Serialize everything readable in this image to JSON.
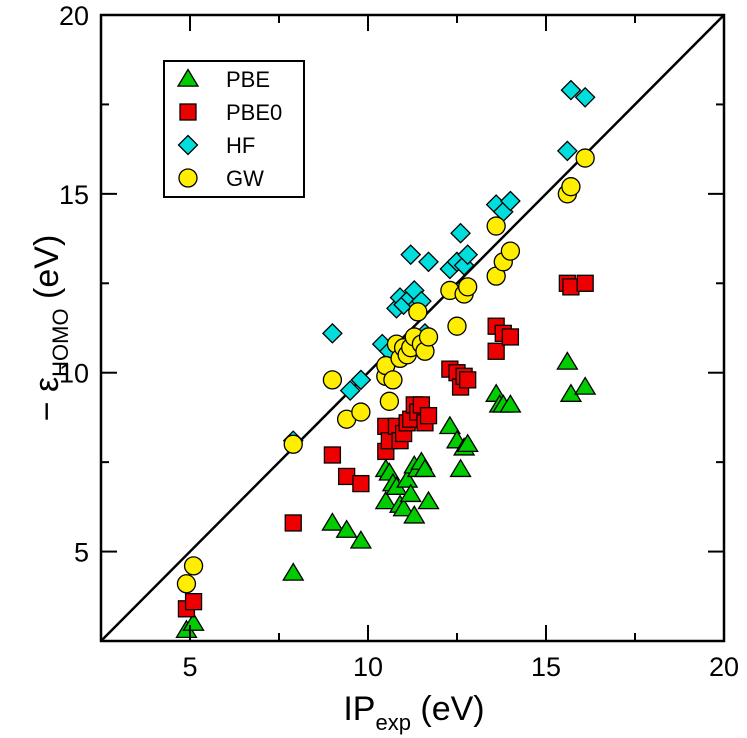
{
  "chart_data": {
    "type": "scatter",
    "xlabel_main": "IP",
    "xlabel_sub": "exp",
    "xlabel_unit": " (eV)",
    "ylabel_prefix": "− ε",
    "ylabel_sub": "HOMO",
    "ylabel_unit": " (eV)",
    "xlim": [
      2.5,
      20
    ],
    "ylim": [
      2.5,
      20
    ],
    "xticks": [
      5,
      10,
      15,
      20
    ],
    "yticks": [
      5,
      10,
      15,
      20
    ],
    "grid": false,
    "legend_position": "top-left",
    "diagonal_line": true,
    "series": [
      {
        "name": "PBE",
        "marker": "triangle",
        "color": "#00cc00",
        "points": [
          [
            4.9,
            2.8
          ],
          [
            5.1,
            3.0
          ],
          [
            7.9,
            4.4
          ],
          [
            9.0,
            5.8
          ],
          [
            9.4,
            5.6
          ],
          [
            9.8,
            5.3
          ],
          [
            10.5,
            7.3
          ],
          [
            10.5,
            6.4
          ],
          [
            10.6,
            7.2
          ],
          [
            10.7,
            6.9
          ],
          [
            10.8,
            6.8
          ],
          [
            10.9,
            6.3
          ],
          [
            11.0,
            6.2
          ],
          [
            11.1,
            7.0
          ],
          [
            11.2,
            6.6
          ],
          [
            11.3,
            6.0
          ],
          [
            11.3,
            7.4
          ],
          [
            11.4,
            7.3
          ],
          [
            11.5,
            7.5
          ],
          [
            11.6,
            7.3
          ],
          [
            11.7,
            6.4
          ],
          [
            12.3,
            8.5
          ],
          [
            12.5,
            8.1
          ],
          [
            12.6,
            7.3
          ],
          [
            12.7,
            7.9
          ],
          [
            12.8,
            8.0
          ],
          [
            13.6,
            9.4
          ],
          [
            13.7,
            9.1
          ],
          [
            13.8,
            9.1
          ],
          [
            14.0,
            9.1
          ],
          [
            15.6,
            10.3
          ],
          [
            15.7,
            9.4
          ],
          [
            16.1,
            9.6
          ]
        ]
      },
      {
        "name": "PBE0",
        "marker": "square",
        "color": "#ee0000",
        "points": [
          [
            4.9,
            3.4
          ],
          [
            5.1,
            3.6
          ],
          [
            7.9,
            5.8
          ],
          [
            9.0,
            7.7
          ],
          [
            9.4,
            7.1
          ],
          [
            9.8,
            6.9
          ],
          [
            10.5,
            7.8
          ],
          [
            10.5,
            8.5
          ],
          [
            10.6,
            8.1
          ],
          [
            10.8,
            8.5
          ],
          [
            10.9,
            8.1
          ],
          [
            11.0,
            8.3
          ],
          [
            11.1,
            8.6
          ],
          [
            11.2,
            8.7
          ],
          [
            11.3,
            9.1
          ],
          [
            11.4,
            8.9
          ],
          [
            11.5,
            9.1
          ],
          [
            11.6,
            8.6
          ],
          [
            11.7,
            8.8
          ],
          [
            12.3,
            10.1
          ],
          [
            12.5,
            10.0
          ],
          [
            12.6,
            9.6
          ],
          [
            12.7,
            9.9
          ],
          [
            12.8,
            9.8
          ],
          [
            13.6,
            11.3
          ],
          [
            13.6,
            10.6
          ],
          [
            13.8,
            11.1
          ],
          [
            14.0,
            11.0
          ],
          [
            15.6,
            12.5
          ],
          [
            15.7,
            12.4
          ],
          [
            16.1,
            12.5
          ]
        ]
      },
      {
        "name": "HF",
        "marker": "diamond",
        "color": "#00dddd",
        "points": [
          [
            7.9,
            8.1
          ],
          [
            9.0,
            11.1
          ],
          [
            9.5,
            9.5
          ],
          [
            9.8,
            9.8
          ],
          [
            10.4,
            10.8
          ],
          [
            10.6,
            10.6
          ],
          [
            10.8,
            11.8
          ],
          [
            10.9,
            12.1
          ],
          [
            11.0,
            11.9
          ],
          [
            11.2,
            12.1
          ],
          [
            11.2,
            13.3
          ],
          [
            11.3,
            12.3
          ],
          [
            11.4,
            11.9
          ],
          [
            11.5,
            12.0
          ],
          [
            11.6,
            11.1
          ],
          [
            11.7,
            13.1
          ],
          [
            12.3,
            12.9
          ],
          [
            12.5,
            13.1
          ],
          [
            12.6,
            13.9
          ],
          [
            12.7,
            13.0
          ],
          [
            12.8,
            13.3
          ],
          [
            13.6,
            14.7
          ],
          [
            13.8,
            14.5
          ],
          [
            14.0,
            14.8
          ],
          [
            15.6,
            16.2
          ],
          [
            15.7,
            17.9
          ],
          [
            16.1,
            17.7
          ]
        ]
      },
      {
        "name": "GW",
        "marker": "circle",
        "color": "#ffee00",
        "points": [
          [
            4.9,
            4.1
          ],
          [
            5.1,
            4.6
          ],
          [
            7.9,
            8.0
          ],
          [
            9.0,
            9.8
          ],
          [
            9.4,
            8.7
          ],
          [
            9.8,
            8.9
          ],
          [
            10.5,
            9.9
          ],
          [
            10.5,
            10.2
          ],
          [
            10.6,
            9.2
          ],
          [
            10.7,
            9.8
          ],
          [
            10.8,
            10.8
          ],
          [
            10.9,
            10.4
          ],
          [
            11.0,
            10.7
          ],
          [
            11.1,
            10.5
          ],
          [
            11.2,
            10.7
          ],
          [
            11.3,
            11.0
          ],
          [
            11.4,
            11.7
          ],
          [
            11.5,
            10.8
          ],
          [
            11.6,
            10.6
          ],
          [
            11.7,
            11.0
          ],
          [
            12.3,
            12.3
          ],
          [
            12.5,
            11.3
          ],
          [
            12.7,
            12.2
          ],
          [
            12.8,
            12.4
          ],
          [
            13.6,
            12.7
          ],
          [
            13.6,
            14.1
          ],
          [
            13.8,
            13.1
          ],
          [
            14.0,
            13.4
          ],
          [
            15.6,
            15.0
          ],
          [
            15.7,
            15.2
          ],
          [
            16.1,
            16.0
          ]
        ]
      }
    ]
  }
}
